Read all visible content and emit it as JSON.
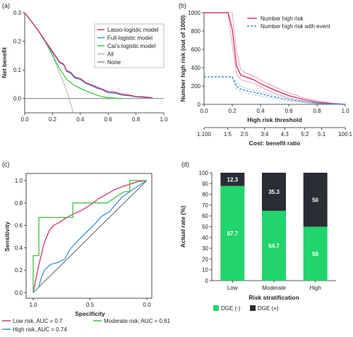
{
  "chart_data": [
    {
      "panel": "(a)",
      "type": "line",
      "xlabel": "",
      "ylabel": "Net benefit",
      "xlim": [
        0,
        1.0
      ],
      "ylim": [
        -0.05,
        0.3
      ],
      "xticks": [
        "0.0",
        "0.2",
        "0.4",
        "0.6",
        "0.8",
        "1.0"
      ],
      "yticks": [
        "0.0",
        "0.1",
        "0.2",
        "0.3"
      ],
      "legend_position": "top-right",
      "series": [
        {
          "name": "Lasso-logistic model",
          "color": "#d6336c",
          "x": [
            0.0,
            0.05,
            0.1,
            0.15,
            0.2,
            0.25,
            0.28,
            0.3,
            0.33,
            0.36,
            0.4,
            0.44,
            0.48,
            0.52,
            0.56,
            0.6,
            0.65,
            0.7,
            0.75,
            0.8,
            0.85,
            0.9,
            0.92
          ],
          "y": [
            0.3,
            0.268,
            0.236,
            0.2,
            0.165,
            0.128,
            0.12,
            0.098,
            0.092,
            0.075,
            0.07,
            0.055,
            0.048,
            0.04,
            0.032,
            0.024,
            0.022,
            0.015,
            0.012,
            0.007,
            0.006,
            0.004,
            0.002
          ]
        },
        {
          "name": "Full-logistic model",
          "color": "#3d8fd1",
          "x": [
            0.0,
            0.05,
            0.1,
            0.15,
            0.2,
            0.25,
            0.28,
            0.3,
            0.33,
            0.36,
            0.4,
            0.44,
            0.48,
            0.52,
            0.56,
            0.6,
            0.65,
            0.7,
            0.75,
            0.8,
            0.85,
            0.9
          ],
          "y": [
            0.3,
            0.268,
            0.236,
            0.2,
            0.162,
            0.125,
            0.118,
            0.095,
            0.088,
            0.072,
            0.066,
            0.052,
            0.045,
            0.036,
            0.03,
            0.02,
            0.018,
            0.012,
            0.01,
            0.006,
            0.004,
            0.002
          ]
        },
        {
          "name": "Cai’s logistic model",
          "color": "#3ec43e",
          "x": [
            0.0,
            0.05,
            0.1,
            0.15,
            0.2,
            0.25,
            0.3,
            0.35,
            0.4,
            0.45,
            0.5,
            0.55,
            0.6,
            0.65,
            0.7
          ],
          "y": [
            0.3,
            0.268,
            0.236,
            0.2,
            0.152,
            0.105,
            0.068,
            0.048,
            0.035,
            0.025,
            0.015,
            0.007,
            0.003,
            0.001,
            0.0
          ]
        },
        {
          "name": "All",
          "color": "#b5b5b5",
          "x": [
            0.0,
            0.1,
            0.2,
            0.3,
            0.35
          ],
          "y": [
            0.3,
            0.236,
            0.15,
            0.03,
            -0.05
          ]
        },
        {
          "name": "None",
          "color": "#8a8a8a",
          "x": [
            0.0,
            1.0
          ],
          "y": [
            0.0,
            0.0
          ]
        }
      ]
    },
    {
      "panel": "(b)",
      "type": "line",
      "xlabel": "High risk threshold",
      "xlabel2": "Cost: benefit ratio",
      "ylabel": "Number high risk (out of 1000)",
      "xlim": [
        0,
        1.0
      ],
      "ylim": [
        0,
        1000
      ],
      "xticks": [
        "0.0",
        "0.2",
        "0.4",
        "0.6",
        "0.8",
        "1.0"
      ],
      "yticks": [
        "0",
        "200",
        "400",
        "600",
        "800",
        "1000"
      ],
      "ratio_ticks": [
        "1:100",
        "1:5",
        "2:5",
        "3:4",
        "4:3",
        "5:2",
        "5:1",
        "100:1"
      ],
      "ratio_positions": [
        0.0,
        0.167,
        0.286,
        0.429,
        0.571,
        0.714,
        0.833,
        1.0
      ],
      "legend_position": "top-right",
      "series": [
        {
          "name": "Number high risk",
          "color": "#d6336c",
          "style": "solid",
          "x": [
            0.0,
            0.17,
            0.2,
            0.23,
            0.26,
            0.3,
            0.35,
            0.4,
            0.5,
            0.6,
            0.7,
            0.8,
            0.9,
            1.0
          ],
          "y": [
            1000,
            1000,
            820,
            420,
            320,
            295,
            270,
            225,
            155,
            95,
            55,
            25,
            8,
            0
          ],
          "upper": [
            1000,
            1000,
            1000,
            580,
            380,
            340,
            310,
            265,
            190,
            125,
            75,
            40,
            15,
            2
          ],
          "lower": [
            1000,
            1000,
            650,
            330,
            270,
            250,
            230,
            190,
            120,
            70,
            35,
            12,
            3,
            0
          ]
        },
        {
          "name": "Number high risk with event",
          "color": "#3d8fd1",
          "style": "dashed",
          "x": [
            0.0,
            0.15,
            0.2,
            0.23,
            0.26,
            0.3,
            0.35,
            0.4,
            0.5,
            0.6,
            0.7,
            0.8,
            0.9,
            1.0
          ],
          "y": [
            300,
            300,
            300,
            200,
            165,
            148,
            132,
            115,
            80,
            50,
            28,
            12,
            4,
            0
          ],
          "upper": [
            300,
            300,
            300,
            245,
            195,
            175,
            155,
            135,
            100,
            65,
            38,
            18,
            7,
            1
          ],
          "lower": [
            300,
            300,
            290,
            165,
            135,
            120,
            105,
            92,
            60,
            35,
            18,
            6,
            1,
            0
          ]
        }
      ]
    },
    {
      "panel": "(c)",
      "type": "line",
      "xlabel": "Specificity",
      "ylabel": "Sensitivity",
      "xlim": [
        1.0,
        0.0
      ],
      "ylim": [
        0,
        1.0
      ],
      "xticks": [
        "1.0",
        "0.5",
        "0.0"
      ],
      "yticks": [
        "0.0",
        "0.2",
        "0.4",
        "0.6",
        "0.8",
        "1.0"
      ],
      "legend_position": "bottom",
      "series": [
        {
          "name": "Low risk, AUC = 0.7",
          "color": "#d6336c",
          "specificity": [
            1.0,
            0.98,
            0.95,
            0.9,
            0.86,
            0.82,
            0.78,
            0.72,
            0.65,
            0.58,
            0.5,
            0.42,
            0.35,
            0.28,
            0.2,
            0.14,
            0.08,
            0.0
          ],
          "sensitivity": [
            0.0,
            0.1,
            0.25,
            0.45,
            0.55,
            0.6,
            0.62,
            0.66,
            0.7,
            0.73,
            0.78,
            0.84,
            0.88,
            0.92,
            0.95,
            0.97,
            0.99,
            1.0
          ]
        },
        {
          "name": "Moderate risk, AUC = 0.61",
          "color": "#3ec43e",
          "specificity": [
            1.0,
            1.0,
            0.95,
            0.95,
            0.92,
            0.92,
            0.8,
            0.65,
            0.65,
            0.5,
            0.5,
            0.35,
            0.2,
            0.15,
            0.15,
            0.0
          ],
          "sensitivity": [
            0.0,
            0.33,
            0.33,
            0.67,
            0.67,
            0.67,
            0.67,
            0.67,
            0.8,
            0.8,
            0.8,
            0.8,
            0.9,
            0.9,
            1.0,
            1.0
          ]
        },
        {
          "name": "High risk, AUC = 0.74",
          "color": "#3d8fd1",
          "specificity": [
            1.0,
            0.95,
            0.93,
            0.9,
            0.85,
            0.78,
            0.72,
            0.68,
            0.62,
            0.57,
            0.52,
            0.45,
            0.4,
            0.33,
            0.28,
            0.22,
            0.15,
            0.08,
            0.0
          ],
          "sensitivity": [
            0.0,
            0.05,
            0.13,
            0.2,
            0.25,
            0.27,
            0.3,
            0.38,
            0.45,
            0.5,
            0.55,
            0.62,
            0.68,
            0.72,
            0.78,
            0.85,
            0.9,
            0.95,
            1.0
          ]
        },
        {
          "name": "",
          "color": "#333333",
          "specificity": [
            1.0,
            0.0
          ],
          "sensitivity": [
            0.0,
            1.0
          ]
        }
      ]
    },
    {
      "panel": "(d)",
      "type": "bar",
      "stacked": true,
      "xlabel": "Risk stratification",
      "ylabel": "Actual rate (%)",
      "ylim": [
        0,
        100
      ],
      "yticks": [
        "0",
        "10",
        "20",
        "30",
        "40",
        "50",
        "60",
        "70",
        "80",
        "90",
        "100"
      ],
      "categories": [
        "Low",
        "Moderate",
        "High"
      ],
      "legend_position": "bottom",
      "series": [
        {
          "name": "DGE (-)",
          "color": "#22d46c",
          "values": [
            87.7,
            64.7,
            50
          ],
          "labels": [
            "87.7",
            "64.7",
            "50"
          ]
        },
        {
          "name": "DGE (+)",
          "color": "#2a2d33",
          "values": [
            12.3,
            35.3,
            50
          ],
          "labels": [
            "12.3",
            "35.3",
            "50"
          ]
        }
      ]
    }
  ]
}
